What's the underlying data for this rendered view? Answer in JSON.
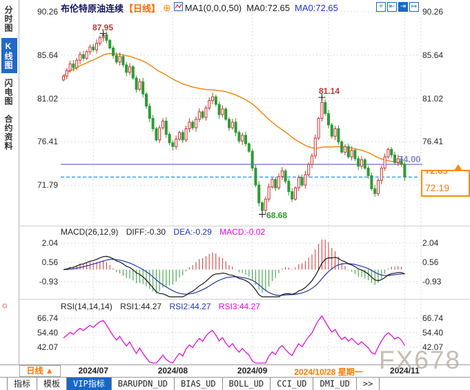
{
  "header": {
    "symbol": "布伦特原油连续",
    "period_tag": "【日线】",
    "plus_icon": "⊕",
    "ma_params": "MA1(0,0,0,50)",
    "ma0_black": "MA0:72.65",
    "ma0_blue": "MA0:72.65",
    "tools": [
      {
        "name": "pan",
        "glyph": "+"
      },
      {
        "name": "zoom-out",
        "glyph": "⇤"
      },
      {
        "name": "zoom-in",
        "glyph": "⇥",
        "active": true
      },
      {
        "name": "page-forward",
        "glyph": "↦"
      }
    ]
  },
  "sidebar": {
    "items": [
      {
        "label": "分时图",
        "active": false
      },
      {
        "label": "K线图",
        "active": true
      },
      {
        "label": "闪电图",
        "active": false
      },
      {
        "label": "合约资料",
        "active": false
      }
    ],
    "hot_icon": "☼"
  },
  "annotations": {
    "high1": "87.95",
    "high2": "81.14",
    "low1": "68.68",
    "hline_label": "74.00",
    "dashline_label": "72.65",
    "alert_label": "72.19"
  },
  "macd_header": {
    "name": "MACD(26,12,9)",
    "diff": "DIFF:-0.30",
    "dea": "DEA:-0.29",
    "macd": "MACD:-0.02"
  },
  "rsi_header": {
    "name": "RSI(14,14,14)",
    "rsi1": "RSI1:44.27",
    "rsi2": "RSI2:44.27",
    "rsi3": "RSI3:44.27"
  },
  "timeline": {
    "period_label": "日线",
    "arrow": "▲",
    "dates": [
      {
        "label": "2024/07",
        "highlight": false
      },
      {
        "label": "2024/08",
        "highlight": false
      },
      {
        "label": "2024/09",
        "highlight": false
      },
      {
        "label": "2024/10/28 星期一",
        "highlight": true
      },
      {
        "label": "2024/11",
        "highlight": false
      }
    ]
  },
  "tabs": [
    {
      "label": "指标",
      "active": false
    },
    {
      "label": "模板",
      "active": false
    },
    {
      "label": "VIP指标",
      "active": true
    },
    {
      "label": "BARUPDN_UD",
      "active": false
    },
    {
      "label": "BIAS_UD",
      "active": false
    },
    {
      "label": "BOLL_UD",
      "active": false
    },
    {
      "label": "CCI_UD",
      "active": false
    },
    {
      "label": "DMI_UD",
      "active": false
    },
    {
      "label": ">>",
      "active": false
    }
  ],
  "watermark": "FX678",
  "colors": {
    "up": "#cc3434",
    "down": "#2e9b34",
    "ma": "#f08200",
    "diff_line": "#151515",
    "dea_line": "#2233aa",
    "rsi_line": "#e010d8",
    "hline_purple": "#8585d8",
    "latest_dashed": "#1e8fff",
    "accent_orange": "#ff7700",
    "accent_blue": "#1668c8",
    "annotation_red": "#c23333",
    "annotation_green": "#2e9b2e"
  },
  "chart_data": {
    "type": "candlestick",
    "symbol": "布伦特原油连续",
    "period": "日线",
    "price_axis": [
      90.26,
      85.64,
      81.02,
      76.41,
      71.79
    ],
    "month_tick_indices": [
      9,
      33,
      57,
      80,
      103
    ],
    "first_open": 83.0,
    "closes": [
      83.4,
      84.0,
      84.7,
      84.3,
      85.1,
      85.7,
      85.3,
      86.0,
      86.5,
      86.2,
      86.9,
      87.5,
      87.8,
      87.2,
      86.4,
      85.6,
      84.9,
      85.5,
      84.6,
      83.8,
      84.4,
      83.2,
      82.0,
      82.8,
      81.5,
      80.2,
      78.9,
      77.8,
      76.6,
      77.9,
      78.6,
      77.2,
      76.3,
      75.9,
      76.7,
      77.4,
      76.6,
      77.8,
      78.5,
      77.9,
      78.8,
      79.6,
      79.0,
      80.0,
      80.8,
      81.2,
      80.4,
      79.3,
      79.9,
      78.8,
      77.9,
      78.5,
      77.4,
      76.5,
      77.1,
      76.2,
      75.4,
      73.6,
      71.8,
      69.9,
      69.1,
      70.3,
      71.6,
      72.4,
      71.5,
      72.7,
      73.3,
      72.2,
      71.1,
      70.3,
      71.5,
      72.6,
      71.8,
      72.9,
      74.0,
      74.9,
      76.8,
      78.9,
      80.6,
      79.4,
      78.2,
      77.0,
      77.8,
      76.4,
      75.3,
      75.9,
      74.8,
      75.5,
      74.6,
      73.8,
      74.5,
      73.6,
      72.8,
      71.4,
      70.9,
      72.3,
      73.6,
      74.8,
      75.6,
      75.0,
      74.2,
      74.6,
      74.0,
      72.65
    ],
    "extremes": [
      {
        "index": 12,
        "type": "high",
        "price": 87.95
      },
      {
        "index": 60,
        "type": "low",
        "price": 68.68
      },
      {
        "index": 78,
        "type": "high",
        "price": 81.14
      }
    ],
    "hlines": [
      {
        "price": 74.0,
        "label": "74.00",
        "style": "solid",
        "color": "#8585d8"
      },
      {
        "price": 72.65,
        "label": "72.65",
        "style": "dashed",
        "color": "#1e8fff"
      }
    ],
    "alert_price": 72.19,
    "ma": {
      "period": 50,
      "last": 72.65
    },
    "macd": {
      "params": [
        26,
        12,
        9
      ],
      "axis": [
        2.04,
        0.56,
        -0.93
      ],
      "diff": -0.3,
      "dea": -0.29,
      "bar": -0.02
    },
    "rsi": {
      "params": [
        14,
        14,
        14
      ],
      "axis": [
        66.74,
        54.4,
        42.07
      ],
      "rsi1": 44.27,
      "rsi2": 44.27,
      "rsi3": 44.27
    }
  }
}
